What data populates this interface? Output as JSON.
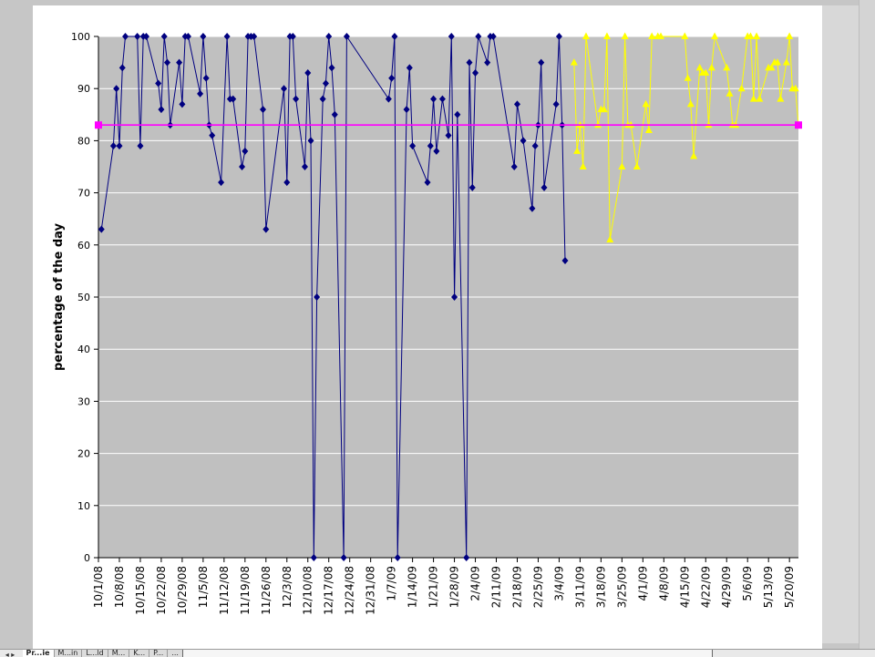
{
  "colors": {
    "plot_bg": "#c0c0c0",
    "series_2008": "#000080",
    "series_2009": "#ffff00",
    "reference_line": "#ff00ff",
    "gridline": "#ffffff"
  },
  "icons": {
    "marker_2008": "diamond",
    "marker_2009": "triangle",
    "marker_reference": "square"
  },
  "sheet_tabs": [
    "Pr...ie",
    "M...in",
    "L...ld",
    "M...",
    "K...",
    "P...",
    "...",
    "...",
    "S...",
    "M...",
    "P...",
    "C...",
    "...",
    "D..."
  ],
  "chart_data": {
    "type": "line",
    "title": "",
    "xlabel": "",
    "ylabel": "percentage of the day",
    "ylim": [
      0,
      100
    ],
    "yticks": [
      0,
      10,
      20,
      30,
      40,
      50,
      60,
      70,
      80,
      90,
      100
    ],
    "xlim": [
      "2008-10-01",
      "2009-05-23"
    ],
    "xtick_labels": [
      "10/1/08",
      "10/8/08",
      "10/15/08",
      "10/22/08",
      "10/29/08",
      "11/5/08",
      "11/12/08",
      "11/19/08",
      "11/26/08",
      "12/3/08",
      "12/10/08",
      "12/17/08",
      "12/24/08",
      "12/31/08",
      "1/7/09",
      "1/14/09",
      "1/21/09",
      "1/28/09",
      "2/4/09",
      "2/11/09",
      "2/18/09",
      "2/25/09",
      "3/4/09",
      "3/11/09",
      "3/18/09",
      "3/25/09",
      "4/1/09",
      "4/8/09",
      "4/15/09",
      "4/22/09",
      "4/29/09",
      "5/6/09",
      "5/13/09",
      "5/20/09"
    ],
    "grid": true,
    "legend": "none",
    "series": [
      {
        "marker": "diamond",
        "color": "#000080",
        "points": [
          [
            "2008-10-02",
            63
          ],
          [
            "2008-10-06",
            79
          ],
          [
            "2008-10-07",
            90
          ],
          [
            "2008-10-08",
            79
          ],
          [
            "2008-10-09",
            94
          ],
          [
            "2008-10-10",
            100
          ],
          [
            "2008-10-14",
            100
          ],
          [
            "2008-10-15",
            79
          ],
          [
            "2008-10-16",
            100
          ],
          [
            "2008-10-17",
            100
          ],
          [
            "2008-10-21",
            91
          ],
          [
            "2008-10-22",
            86
          ],
          [
            "2008-10-23",
            100
          ],
          [
            "2008-10-24",
            95
          ],
          [
            "2008-10-25",
            83
          ],
          [
            "2008-10-28",
            95
          ],
          [
            "2008-10-29",
            87
          ],
          [
            "2008-10-30",
            100
          ],
          [
            "2008-10-31",
            100
          ],
          [
            "2008-11-04",
            89
          ],
          [
            "2008-11-05",
            100
          ],
          [
            "2008-11-06",
            92
          ],
          [
            "2008-11-07",
            83
          ],
          [
            "2008-11-08",
            81
          ],
          [
            "2008-11-11",
            72
          ],
          [
            "2008-11-13",
            100
          ],
          [
            "2008-11-14",
            88
          ],
          [
            "2008-11-15",
            88
          ],
          [
            "2008-11-18",
            75
          ],
          [
            "2008-11-19",
            78
          ],
          [
            "2008-11-20",
            100
          ],
          [
            "2008-11-21",
            100
          ],
          [
            "2008-11-22",
            100
          ],
          [
            "2008-11-25",
            86
          ],
          [
            "2008-11-26",
            63
          ],
          [
            "2008-12-02",
            90
          ],
          [
            "2008-12-03",
            72
          ],
          [
            "2008-12-04",
            100
          ],
          [
            "2008-12-05",
            100
          ],
          [
            "2008-12-06",
            88
          ],
          [
            "2008-12-09",
            75
          ],
          [
            "2008-12-10",
            93
          ],
          [
            "2008-12-11",
            80
          ],
          [
            "2008-12-12",
            0
          ],
          [
            "2008-12-13",
            50
          ],
          [
            "2008-12-15",
            88
          ],
          [
            "2008-12-16",
            91
          ],
          [
            "2008-12-17",
            100
          ],
          [
            "2008-12-18",
            94
          ],
          [
            "2008-12-19",
            85
          ],
          [
            "2008-12-22",
            0
          ],
          [
            "2008-12-23",
            100
          ],
          [
            "2009-01-06",
            88
          ],
          [
            "2009-01-07",
            92
          ],
          [
            "2009-01-08",
            100
          ],
          [
            "2009-01-09",
            0
          ],
          [
            "2009-01-12",
            86
          ],
          [
            "2009-01-13",
            94
          ],
          [
            "2009-01-14",
            79
          ],
          [
            "2009-01-19",
            72
          ],
          [
            "2009-01-20",
            79
          ],
          [
            "2009-01-21",
            88
          ],
          [
            "2009-01-22",
            78
          ],
          [
            "2009-01-24",
            88
          ],
          [
            "2009-01-26",
            81
          ],
          [
            "2009-01-27",
            100
          ],
          [
            "2009-01-28",
            50
          ],
          [
            "2009-01-29",
            85
          ],
          [
            "2009-02-01",
            0
          ],
          [
            "2009-02-02",
            95
          ],
          [
            "2009-02-03",
            71
          ],
          [
            "2009-02-04",
            93
          ],
          [
            "2009-02-05",
            100
          ],
          [
            "2009-02-08",
            95
          ],
          [
            "2009-02-09",
            100
          ],
          [
            "2009-02-10",
            100
          ],
          [
            "2009-02-17",
            75
          ],
          [
            "2009-02-18",
            87
          ],
          [
            "2009-02-20",
            80
          ],
          [
            "2009-02-23",
            67
          ],
          [
            "2009-02-24",
            79
          ],
          [
            "2009-02-25",
            83
          ],
          [
            "2009-02-26",
            95
          ],
          [
            "2009-02-27",
            71
          ],
          [
            "2009-03-03",
            87
          ],
          [
            "2009-03-04",
            100
          ],
          [
            "2009-03-05",
            83
          ],
          [
            "2009-03-06",
            57
          ]
        ]
      },
      {
        "marker": "triangle",
        "color": "#ffff00",
        "points": [
          [
            "2009-03-09",
            95
          ],
          [
            "2009-03-10",
            78
          ],
          [
            "2009-03-11",
            83
          ],
          [
            "2009-03-12",
            75
          ],
          [
            "2009-03-13",
            100
          ],
          [
            "2009-03-17",
            83
          ],
          [
            "2009-03-18",
            86
          ],
          [
            "2009-03-19",
            86
          ],
          [
            "2009-03-20",
            100
          ],
          [
            "2009-03-21",
            61
          ],
          [
            "2009-03-25",
            75
          ],
          [
            "2009-03-26",
            100
          ],
          [
            "2009-03-27",
            83
          ],
          [
            "2009-03-28",
            83
          ],
          [
            "2009-03-30",
            75
          ],
          [
            "2009-04-02",
            87
          ],
          [
            "2009-04-03",
            82
          ],
          [
            "2009-04-04",
            100
          ],
          [
            "2009-04-06",
            100
          ],
          [
            "2009-04-07",
            100
          ],
          [
            "2009-04-15",
            100
          ],
          [
            "2009-04-16",
            92
          ],
          [
            "2009-04-17",
            87
          ],
          [
            "2009-04-18",
            77
          ],
          [
            "2009-04-20",
            94
          ],
          [
            "2009-04-21",
            93
          ],
          [
            "2009-04-22",
            93
          ],
          [
            "2009-04-23",
            83
          ],
          [
            "2009-04-24",
            94
          ],
          [
            "2009-04-25",
            100
          ],
          [
            "2009-04-29",
            94
          ],
          [
            "2009-04-30",
            89
          ],
          [
            "2009-05-01",
            83
          ],
          [
            "2009-05-02",
            83
          ],
          [
            "2009-05-04",
            90
          ],
          [
            "2009-05-06",
            100
          ],
          [
            "2009-05-07",
            100
          ],
          [
            "2009-05-08",
            88
          ],
          [
            "2009-05-09",
            100
          ],
          [
            "2009-05-10",
            88
          ],
          [
            "2009-05-13",
            94
          ],
          [
            "2009-05-14",
            94
          ],
          [
            "2009-05-15",
            95
          ],
          [
            "2009-05-16",
            95
          ],
          [
            "2009-05-17",
            88
          ],
          [
            "2009-05-19",
            95
          ],
          [
            "2009-05-20",
            100
          ],
          [
            "2009-05-21",
            90
          ],
          [
            "2009-05-22",
            90
          ],
          [
            "2009-05-23",
            83
          ]
        ]
      },
      {
        "marker": "square",
        "color": "#ff00ff",
        "points": [
          [
            "2008-10-01",
            83
          ],
          [
            "2009-05-23",
            83
          ]
        ]
      }
    ]
  }
}
